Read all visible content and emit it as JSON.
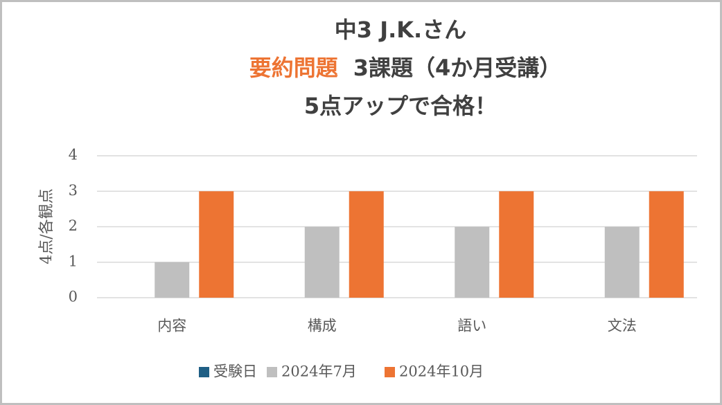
{
  "chart_data": {
    "type": "bar",
    "title": {
      "line1": "中3 J.K.さん",
      "line2_highlight": "要約問題",
      "line2_rest": "3課題（4か月受講）",
      "line3": "5点アップで合格！"
    },
    "y_label": "4点/各観点",
    "categories": [
      "内容",
      "構成",
      "語い",
      "文法"
    ],
    "series": [
      {
        "name": "受験日",
        "color": "#1f5f85",
        "values": [
          0,
          0,
          0,
          0
        ]
      },
      {
        "name": "2024年7月",
        "color": "#bfbfbf",
        "values": [
          1,
          2,
          2,
          2
        ]
      },
      {
        "name": "2024年10月",
        "color": "#ed7433",
        "values": [
          3,
          3,
          3,
          3
        ]
      }
    ],
    "ylim": [
      0,
      4
    ],
    "yticks": [
      0,
      1,
      2,
      3,
      4
    ],
    "grid": true,
    "legend": "bottom"
  }
}
